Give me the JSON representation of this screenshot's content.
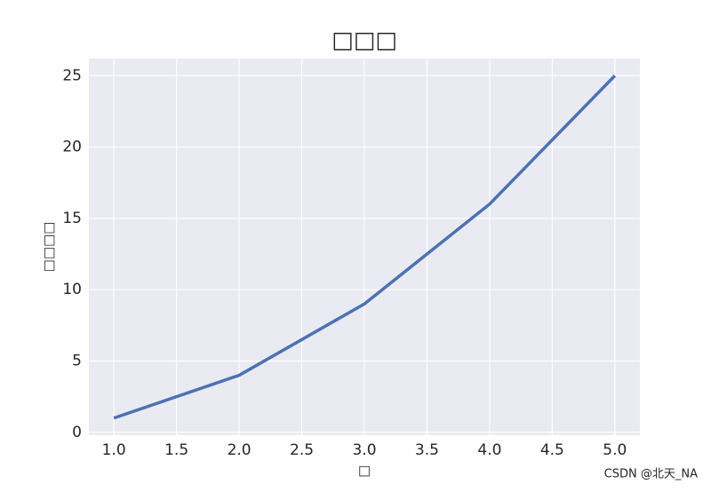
{
  "chart_data": {
    "type": "line",
    "title": "□□□",
    "x_label": "□",
    "y_label": "□□□□",
    "x": [
      1,
      2,
      3,
      4,
      5
    ],
    "series": [
      {
        "color": "#4c72b0",
        "values": [
          1,
          4,
          9,
          16,
          25
        ]
      }
    ],
    "xlim": [
      0.8,
      5.2
    ],
    "ylim": [
      -0.2,
      26.2
    ],
    "xticks": [
      {
        "value": 1,
        "label": "1.0"
      },
      1.5,
      {
        "value": 2,
        "label": "2.0"
      },
      2.5,
      {
        "value": 3,
        "label": "3.0"
      },
      3.5,
      {
        "value": 4,
        "label": "4.0"
      },
      4.5,
      {
        "value": 5,
        "label": "5.0"
      }
    ],
    "yticks": [
      0,
      5,
      10,
      15,
      20,
      25
    ],
    "grid": true,
    "background": "#eaeaf2"
  },
  "watermark": "CSDN @北天_NA"
}
